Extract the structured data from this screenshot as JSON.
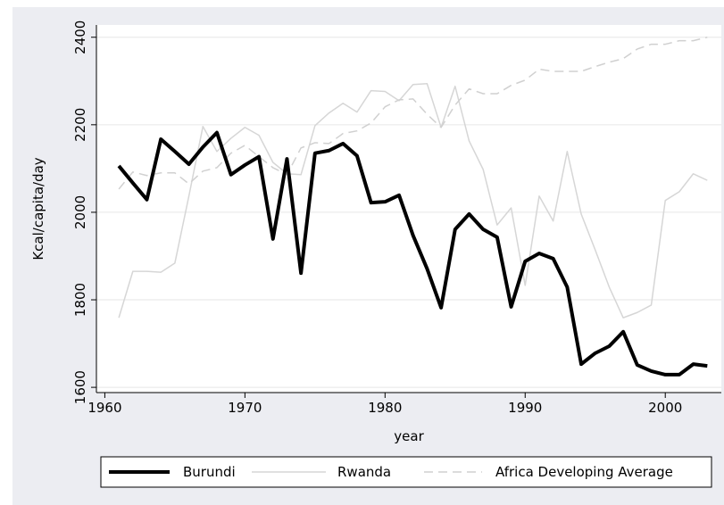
{
  "chart_data": {
    "type": "line",
    "y_label": "Kcal/capita/day",
    "x_label": "year",
    "x": [
      1961,
      1962,
      1963,
      1964,
      1965,
      1966,
      1967,
      1968,
      1969,
      1970,
      1971,
      1972,
      1973,
      1974,
      1975,
      1976,
      1977,
      1978,
      1979,
      1980,
      1981,
      1982,
      1983,
      1984,
      1985,
      1986,
      1987,
      1988,
      1989,
      1990,
      1991,
      1992,
      1993,
      1994,
      1995,
      1996,
      1997,
      1998,
      1999,
      2000,
      2001,
      2002,
      2003
    ],
    "series": [
      {
        "name": "Burundi",
        "color": "#000000",
        "style": "solid",
        "width": 4,
        "values": [
          2106,
          2067,
          2029,
          2167,
          2139,
          2110,
          2149,
          2182,
          2086,
          2108,
          2127,
          1939,
          2122,
          1861,
          2135,
          2141,
          2157,
          2129,
          2022,
          2024,
          2039,
          1947,
          1871,
          1782,
          1961,
          1996,
          1961,
          1943,
          1784,
          1888,
          1906,
          1894,
          1829,
          1653,
          1678,
          1694,
          1727,
          1651,
          1637,
          1629,
          1629,
          1653,
          1649
        ]
      },
      {
        "name": "Rwanda",
        "color": "#d6d6d6",
        "style": "solid",
        "width": 1.5,
        "values": [
          1759,
          1865,
          1865,
          1863,
          1884,
          2037,
          2196,
          2139,
          2169,
          2194,
          2176,
          2114,
          2088,
          2086,
          2198,
          2227,
          2249,
          2229,
          2278,
          2276,
          2255,
          2292,
          2294,
          2194,
          2288,
          2163,
          2098,
          1971,
          2010,
          1833,
          2037,
          1980,
          2139,
          1996,
          1914,
          1829,
          1759,
          1771,
          1788,
          2027,
          2047,
          2088,
          2073
        ]
      },
      {
        "name": "Africa Developing Average",
        "color": "#d0d0d0",
        "style": "dashed",
        "width": 1.5,
        "values": [
          2053,
          2092,
          2084,
          2090,
          2090,
          2065,
          2094,
          2102,
          2135,
          2153,
          2127,
          2102,
          2086,
          2147,
          2159,
          2157,
          2180,
          2186,
          2204,
          2241,
          2257,
          2259,
          2224,
          2194,
          2245,
          2282,
          2271,
          2271,
          2290,
          2302,
          2327,
          2322,
          2322,
          2322,
          2333,
          2343,
          2351,
          2373,
          2384,
          2384,
          2392,
          2392,
          2400
        ]
      }
    ],
    "xlim": [
      1959.4,
      2004
    ],
    "xticks": [
      1960,
      1970,
      1980,
      1990,
      2000
    ],
    "ylim": [
      1588,
      2428
    ],
    "yticks": [
      1600,
      1800,
      2000,
      2200,
      2400
    ],
    "grid": true,
    "legend": "bottom"
  }
}
